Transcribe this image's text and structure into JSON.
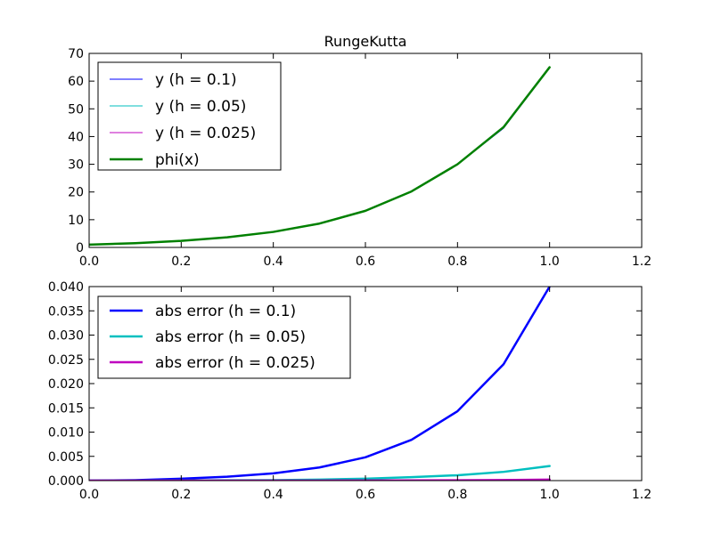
{
  "chart_data": [
    {
      "type": "line",
      "title": "RungeKutta",
      "xlabel": "",
      "ylabel": "",
      "xlim": [
        0.0,
        1.2
      ],
      "ylim": [
        0,
        70
      ],
      "x_ticks": [
        "0.0",
        "0.2",
        "0.4",
        "0.6",
        "0.8",
        "1.0",
        "1.2"
      ],
      "y_ticks": [
        "0",
        "10",
        "20",
        "30",
        "40",
        "50",
        "60",
        "70"
      ],
      "grid": false,
      "legend_position": "top-left",
      "x": [
        0.0,
        0.1,
        0.2,
        0.3,
        0.4,
        0.5,
        0.6,
        0.7,
        0.8,
        0.9,
        1.0
      ],
      "series": [
        {
          "name": "y (h = 0.1)",
          "color": "#0000ff",
          "width": 1,
          "values": [
            1.0,
            1.54,
            2.37,
            3.64,
            5.6,
            8.6,
            13.2,
            20.2,
            30.0,
            43.0,
            64.8
          ]
        },
        {
          "name": "y (h = 0.05)",
          "color": "#00bfbf",
          "width": 1,
          "values": [
            1.0,
            1.54,
            2.37,
            3.64,
            5.6,
            8.6,
            13.2,
            20.2,
            30.0,
            43.2,
            64.85
          ]
        },
        {
          "name": "y (h = 0.025)",
          "color": "#bf00bf",
          "width": 1,
          "values": [
            1.0,
            1.54,
            2.37,
            3.64,
            5.6,
            8.6,
            13.2,
            20.2,
            30.0,
            43.3,
            64.9
          ]
        },
        {
          "name": "phi(x)",
          "color": "#008000",
          "width": 2.5,
          "values": [
            1.0,
            1.54,
            2.37,
            3.64,
            5.6,
            8.6,
            13.2,
            20.2,
            30.0,
            43.4,
            65.0
          ]
        }
      ]
    },
    {
      "type": "line",
      "title": "",
      "xlabel": "",
      "ylabel": "",
      "xlim": [
        0.0,
        1.2
      ],
      "ylim": [
        0.0,
        0.04
      ],
      "x_ticks": [
        "0.0",
        "0.2",
        "0.4",
        "0.6",
        "0.8",
        "1.0",
        "1.2"
      ],
      "y_ticks": [
        "0.000",
        "0.005",
        "0.010",
        "0.015",
        "0.020",
        "0.025",
        "0.030",
        "0.035",
        "0.040"
      ],
      "grid": false,
      "legend_position": "top-left",
      "x": [
        0.0,
        0.1,
        0.2,
        0.3,
        0.4,
        0.5,
        0.6,
        0.7,
        0.8,
        0.9,
        1.0
      ],
      "series": [
        {
          "name": "abs error (h = 0.1)",
          "color": "#0000ff",
          "width": 2.5,
          "values": [
            0.0,
            0.0001,
            0.0004,
            0.0008,
            0.0015,
            0.0027,
            0.0048,
            0.0084,
            0.0143,
            0.024,
            0.04
          ]
        },
        {
          "name": "abs error (h = 0.05)",
          "color": "#00bfbf",
          "width": 2.5,
          "values": [
            0.0,
            0.0,
            3e-05,
            6e-05,
            0.0001,
            0.0002,
            0.0004,
            0.0007,
            0.0011,
            0.0018,
            0.003
          ]
        },
        {
          "name": "abs error (h = 0.025)",
          "color": "#bf00bf",
          "width": 2.5,
          "values": [
            0.0,
            0.0,
            0.0,
            0.0,
            0.0,
            1e-05,
            2e-05,
            4e-05,
            7e-05,
            0.00012,
            0.0002
          ]
        }
      ]
    }
  ]
}
